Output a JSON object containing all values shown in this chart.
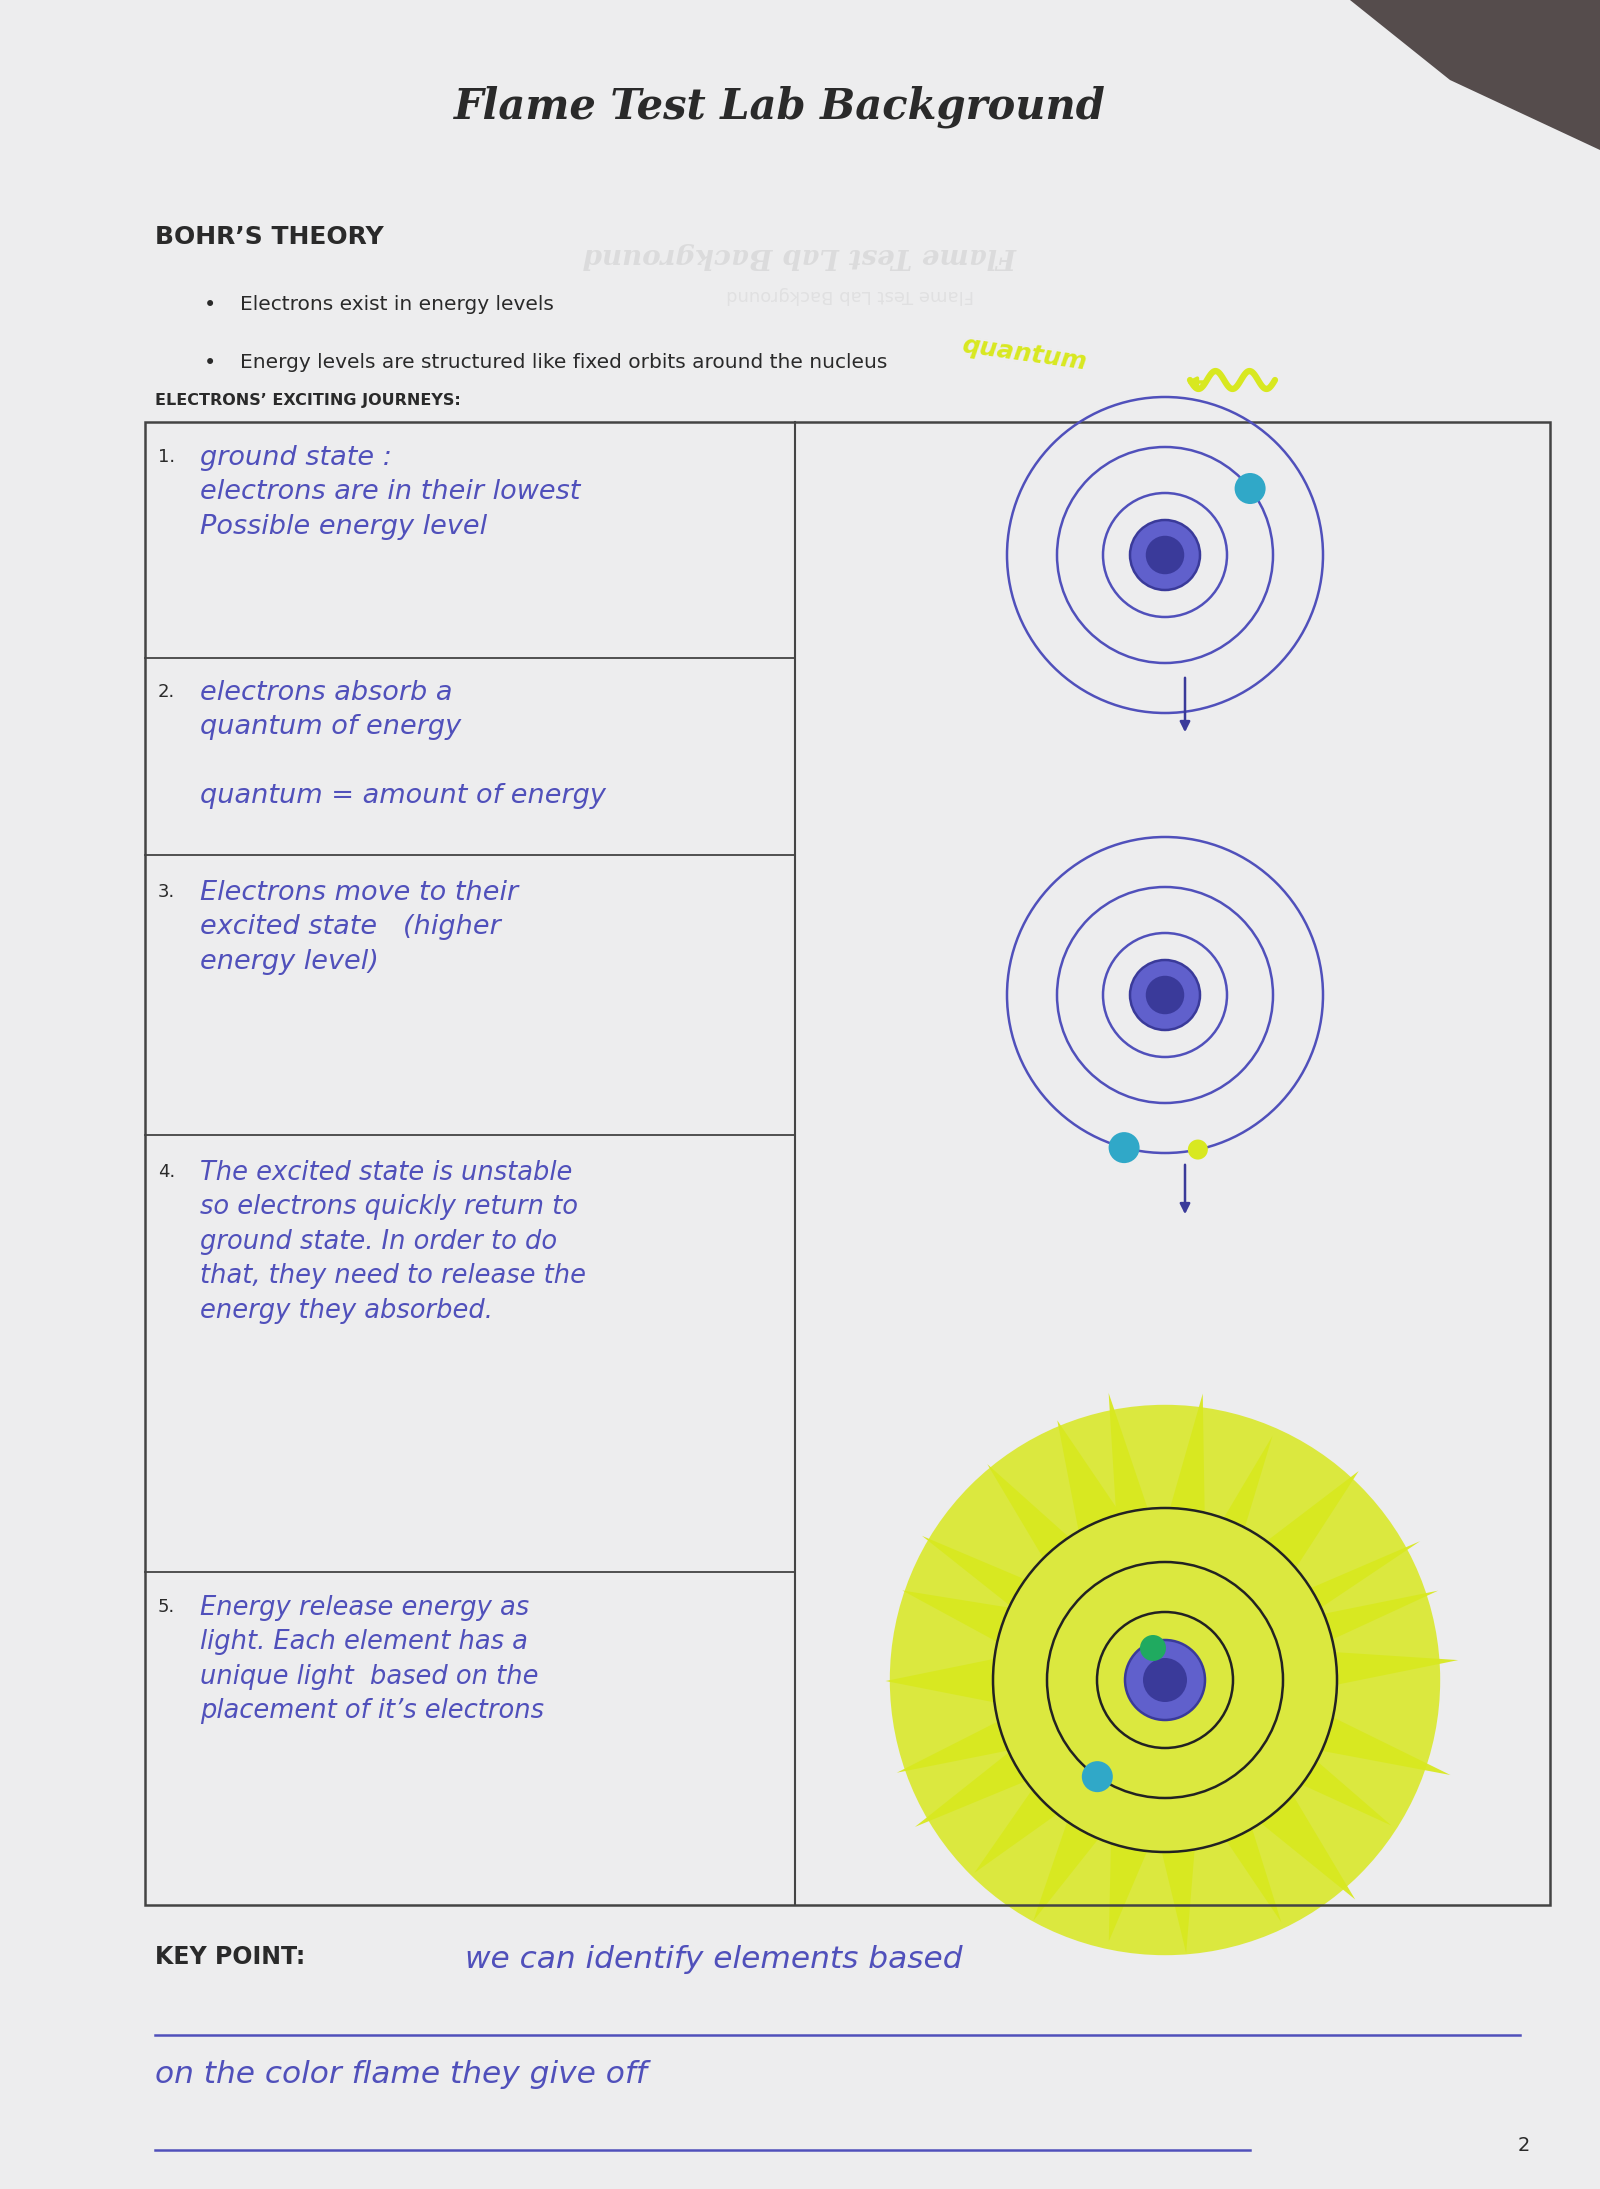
{
  "title": "Flame Test Lab Background",
  "bg_color": "#c8c8c8",
  "paper_color": "#ededee",
  "dark_corner": "#4a4040",
  "section_header": "BOHR’S THEORY",
  "bullets": [
    "Electrons exist in energy levels",
    "Energy levels are structured like fixed orbits around the nucleus"
  ],
  "table_header": "ELECTRONS’ EXCITING JOURNEYS:",
  "step_texts": [
    "ground state :\nelectrons are in their lowest\nPossible energy level",
    "electrons absorb a\nquantum of energy\n\nquantum = amount of energy",
    "Electrons move to their\nexcited state   (higher\nenergy level)",
    "The excited state is unstable\nso electrons quickly return to\nground state. In order to do\nthat, they need to release the\nenergy they absorbed.",
    "Energy release energy as\nlight. Each element has a\nunique light  based on the\nplacement of it’s electrons"
  ],
  "step_nums": [
    "1.",
    "2.",
    "3.",
    "4.",
    "5."
  ],
  "key_point_label": "KEY POINT:",
  "key_point_line1": "we can identify elements based",
  "key_point_line2": "on the color flame they give off",
  "handwriting_color": "#5050bb",
  "print_color": "#2a2a2a",
  "highlight_yellow": "#d8e820",
  "highlight_blue": "#30a8c8",
  "nucleus_dark": "#3a3a9a",
  "nucleus_light": "#6060cc",
  "page_num": "2",
  "ghost_text": "Flame Test Lab Background",
  "ghost_text2": "Flame Test Lab Background"
}
